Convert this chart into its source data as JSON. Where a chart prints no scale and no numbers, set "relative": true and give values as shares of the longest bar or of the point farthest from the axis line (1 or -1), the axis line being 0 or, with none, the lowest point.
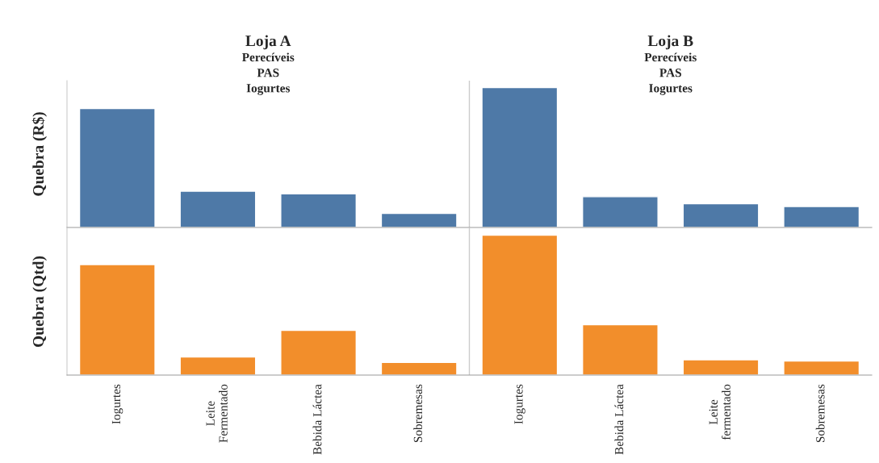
{
  "chart_data": [
    {
      "type": "bar",
      "ylabel": "Quebra (R$)",
      "relative": true,
      "tick_labels": false,
      "annotations": [
        "Loja A\nPerecíveis\nPAS\nIogurtes",
        "Loja B\nPerecíveis\nPAS\nIogurtes"
      ],
      "categories": [
        null,
        null,
        null,
        null,
        null,
        null,
        null,
        null
      ],
      "series": [
        {
          "color": "#4e79a7",
          "values": [
            0.85,
            0.26,
            0.24,
            0.1,
            1,
            0.22,
            0.17,
            0.15
          ]
        }
      ]
    },
    {
      "type": "bar",
      "ylabel": "Quebra (Qtd)",
      "relative": true,
      "tick_labels": "x",
      "categories": [
        "Iogurtes",
        "Leite\nFermentado",
        "Bebida Láctea",
        "Sobremesas",
        "Iogurtes",
        "Bebida Láctea",
        "Leite\nfermentado",
        "Sobremesas"
      ],
      "series": [
        {
          "color": "#f28e2b",
          "values": [
            0.79,
            0.13,
            0.32,
            0.09,
            1,
            0.36,
            0.11,
            0.1
          ]
        }
      ]
    }
  ]
}
